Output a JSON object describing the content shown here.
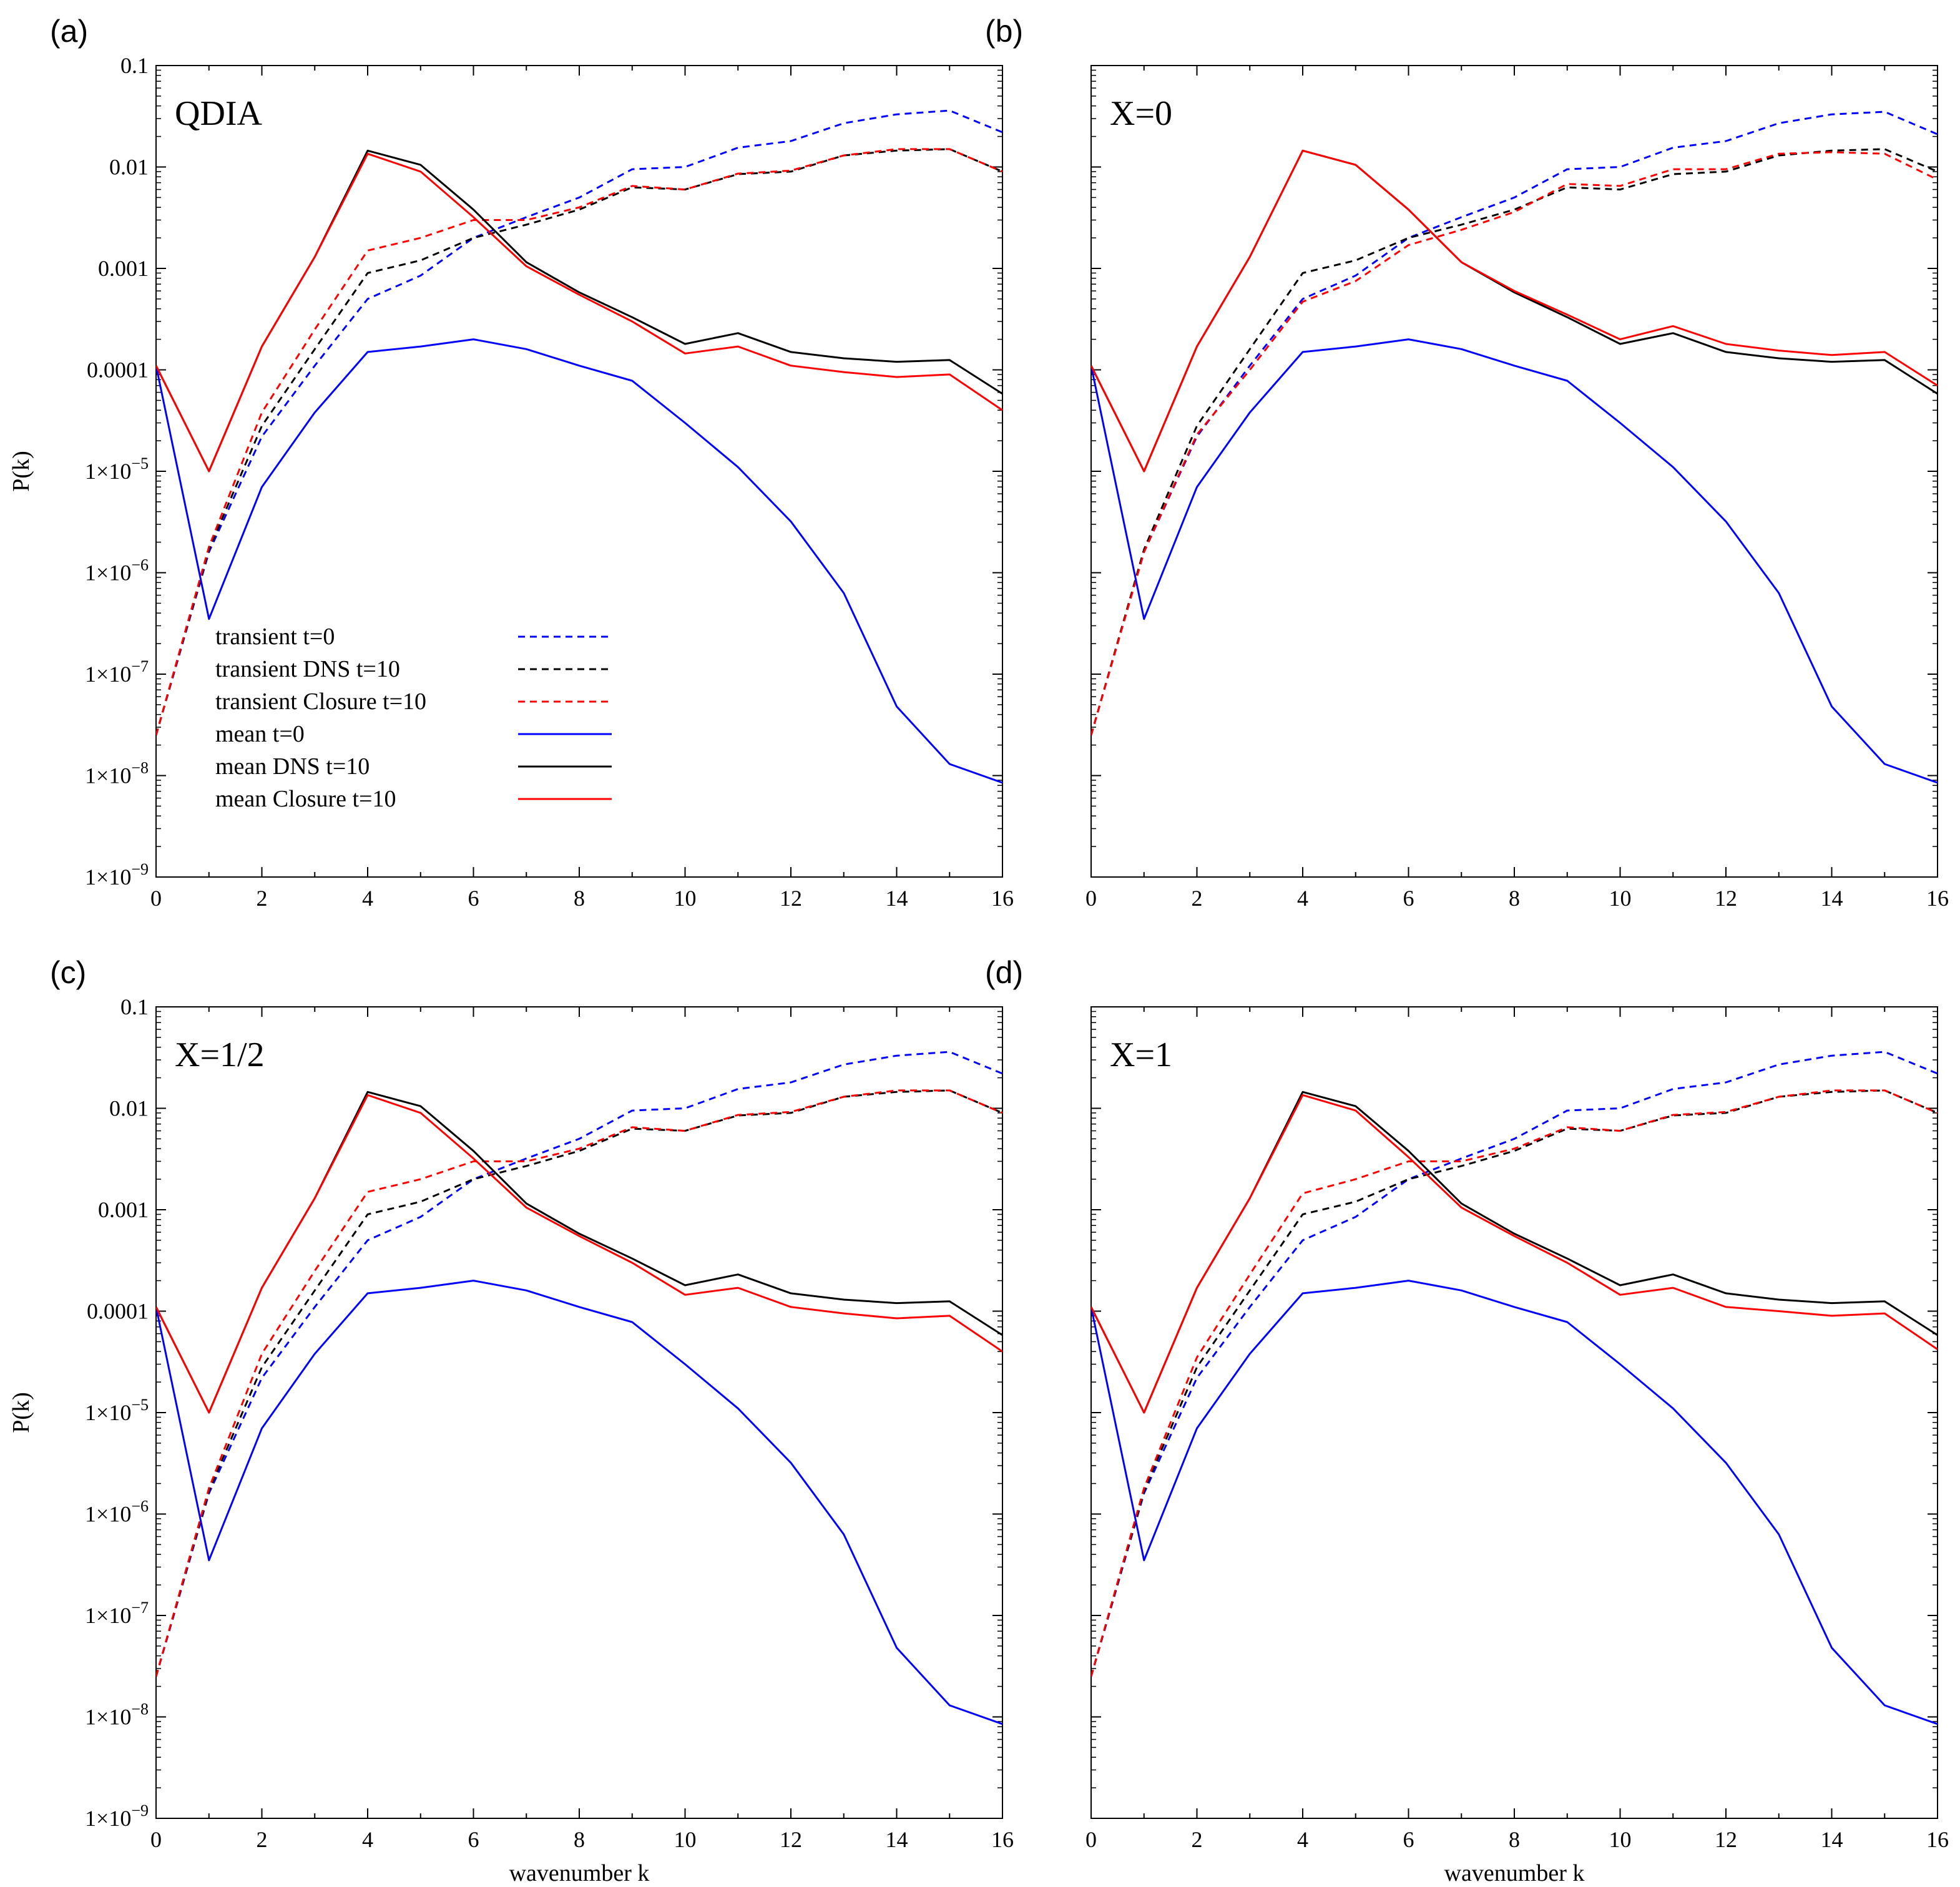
{
  "chart_data": {
    "type": "line",
    "x": [
      0,
      1,
      2,
      3,
      4,
      5,
      6,
      7,
      8,
      9,
      10,
      11,
      12,
      13,
      14,
      15,
      16
    ],
    "xlabel": "wavenumber k",
    "ylabel": "P(k)",
    "xlim": [
      0,
      16
    ],
    "ylim": [
      1e-09,
      0.1
    ],
    "yscale": "log",
    "xticks": [
      0,
      2,
      4,
      6,
      8,
      10,
      12,
      14,
      16
    ],
    "yticks": [
      {
        "value": 0.1,
        "mantissa": "0.1",
        "exp": ""
      },
      {
        "value": 0.01,
        "mantissa": "0.01",
        "exp": ""
      },
      {
        "value": 0.001,
        "mantissa": "0.001",
        "exp": ""
      },
      {
        "value": 0.0001,
        "mantissa": "0.0001",
        "exp": ""
      },
      {
        "value": 1e-05,
        "mantissa": "1×10",
        "exp": "−5"
      },
      {
        "value": 1e-06,
        "mantissa": "1×10",
        "exp": "−6"
      },
      {
        "value": 1e-07,
        "mantissa": "1×10",
        "exp": "−7"
      },
      {
        "value": 1e-08,
        "mantissa": "1×10",
        "exp": "−8"
      },
      {
        "value": 1e-09,
        "mantissa": "1×10",
        "exp": "−9"
      }
    ],
    "legend": [
      {
        "label": "transient t=0",
        "series": 0
      },
      {
        "label": "transient DNS t=10",
        "series": 1
      },
      {
        "label": "transient Closure t=10",
        "series": 2
      },
      {
        "label": "mean t=0",
        "series": 3
      },
      {
        "label": "mean DNS t=10",
        "series": 4
      },
      {
        "label": "mean Closure t=10",
        "series": 5
      }
    ],
    "legend_panel": "a",
    "panels": [
      {
        "letter": "(a)",
        "title": "QDIA",
        "series": [
          {
            "name": "transient t=0",
            "color": "#0000ff",
            "dash": true,
            "values": [
              2.5e-08,
              1.6e-06,
              2.2e-05,
              0.00011,
              0.0005,
              0.00085,
              0.002,
              0.0032,
              0.005,
              0.0095,
              0.01,
              0.0155,
              0.018,
              0.027,
              0.033,
              0.036,
              0.022
            ]
          },
          {
            "name": "transient DNS t=10",
            "color": "#000000",
            "dash": true,
            "values": [
              2.5e-08,
              1.7e-06,
              2.8e-05,
              0.00016,
              0.0009,
              0.0012,
              0.002,
              0.0027,
              0.0038,
              0.0063,
              0.006,
              0.0085,
              0.009,
              0.013,
              0.0145,
              0.015,
              0.009
            ]
          },
          {
            "name": "transient Closure t=10",
            "color": "#ff0000",
            "dash": true,
            "values": [
              2.5e-08,
              1.8e-06,
              3.8e-05,
              0.00025,
              0.0015,
              0.002,
              0.003,
              0.003,
              0.004,
              0.0065,
              0.006,
              0.0086,
              0.0092,
              0.013,
              0.015,
              0.015,
              0.009
            ]
          },
          {
            "name": "mean t=0",
            "color": "#0000ff",
            "dash": false,
            "values": [
              0.00011,
              3.5e-07,
              7e-06,
              3.8e-05,
              0.00015,
              0.00017,
              0.0002,
              0.00016,
              0.00011,
              7.8e-05,
              3e-05,
              1.1e-05,
              3.2e-06,
              6.3e-07,
              4.8e-08,
              1.3e-08,
              8.5e-09
            ]
          },
          {
            "name": "mean DNS t=10",
            "color": "#000000",
            "dash": false,
            "values": [
              0.00011,
              1e-05,
              0.00017,
              0.0013,
              0.0145,
              0.0105,
              0.0038,
              0.00115,
              0.00058,
              0.00033,
              0.00018,
              0.00023,
              0.00015,
              0.00013,
              0.00012,
              0.000125,
              5.8e-05
            ]
          },
          {
            "name": "mean Closure t=10",
            "color": "#ff0000",
            "dash": false,
            "values": [
              0.00011,
              1e-05,
              0.00017,
              0.0013,
              0.0135,
              0.009,
              0.0032,
              0.00105,
              0.00055,
              0.0003,
              0.000145,
              0.00017,
              0.00011,
              9.5e-05,
              8.5e-05,
              9e-05,
              4e-05
            ]
          }
        ]
      },
      {
        "letter": "(b)",
        "title": "X=0",
        "series": [
          {
            "name": "transient t=0",
            "color": "#0000ff",
            "dash": true,
            "values": [
              2.5e-08,
              1.6e-06,
              2.2e-05,
              0.00011,
              0.0005,
              0.00085,
              0.002,
              0.0032,
              0.005,
              0.0095,
              0.01,
              0.0155,
              0.018,
              0.027,
              0.033,
              0.035,
              0.021
            ]
          },
          {
            "name": "transient DNS t=10",
            "color": "#000000",
            "dash": true,
            "values": [
              2.5e-08,
              1.7e-06,
              2.8e-05,
              0.00016,
              0.0009,
              0.0012,
              0.002,
              0.0027,
              0.0038,
              0.0063,
              0.006,
              0.0085,
              0.009,
              0.013,
              0.0145,
              0.015,
              0.009
            ]
          },
          {
            "name": "transient Closure t=10",
            "color": "#ff0000",
            "dash": true,
            "values": [
              2.5e-08,
              1.6e-06,
              2.3e-05,
              0.0001,
              0.00047,
              0.00075,
              0.0017,
              0.0024,
              0.0036,
              0.0068,
              0.0065,
              0.0095,
              0.0095,
              0.0135,
              0.014,
              0.0135,
              0.0075
            ]
          },
          {
            "name": "mean t=0",
            "color": "#0000ff",
            "dash": false,
            "values": [
              0.00011,
              3.5e-07,
              7e-06,
              3.8e-05,
              0.00015,
              0.00017,
              0.0002,
              0.00016,
              0.00011,
              7.8e-05,
              3e-05,
              1.1e-05,
              3.2e-06,
              6.3e-07,
              4.8e-08,
              1.3e-08,
              8.5e-09
            ]
          },
          {
            "name": "mean DNS t=10",
            "color": "#000000",
            "dash": false,
            "values": [
              0.00011,
              1e-05,
              0.00017,
              0.0013,
              0.0145,
              0.0105,
              0.0038,
              0.00115,
              0.00058,
              0.00033,
              0.00018,
              0.00023,
              0.00015,
              0.00013,
              0.00012,
              0.000125,
              5.8e-05
            ]
          },
          {
            "name": "mean Closure t=10",
            "color": "#ff0000",
            "dash": false,
            "values": [
              0.00011,
              1e-05,
              0.00017,
              0.0013,
              0.0145,
              0.0105,
              0.0038,
              0.00115,
              0.0006,
              0.00035,
              0.0002,
              0.00027,
              0.00018,
              0.000155,
              0.00014,
              0.00015,
              7e-05
            ]
          }
        ]
      },
      {
        "letter": "(c)",
        "title": "X=1/2",
        "series": [
          {
            "name": "transient t=0",
            "color": "#0000ff",
            "dash": true,
            "values": [
              2.5e-08,
              1.6e-06,
              2.2e-05,
              0.00011,
              0.0005,
              0.00085,
              0.002,
              0.0032,
              0.005,
              0.0095,
              0.01,
              0.0155,
              0.018,
              0.027,
              0.033,
              0.036,
              0.022
            ]
          },
          {
            "name": "transient DNS t=10",
            "color": "#000000",
            "dash": true,
            "values": [
              2.5e-08,
              1.7e-06,
              2.8e-05,
              0.00016,
              0.0009,
              0.0012,
              0.002,
              0.0027,
              0.0038,
              0.0063,
              0.006,
              0.0085,
              0.009,
              0.013,
              0.0145,
              0.015,
              0.009
            ]
          },
          {
            "name": "transient Closure t=10",
            "color": "#ff0000",
            "dash": true,
            "values": [
              2.5e-08,
              1.8e-06,
              3.8e-05,
              0.00025,
              0.0015,
              0.002,
              0.003,
              0.003,
              0.004,
              0.0065,
              0.006,
              0.0086,
              0.0092,
              0.013,
              0.015,
              0.015,
              0.009
            ]
          },
          {
            "name": "mean t=0",
            "color": "#0000ff",
            "dash": false,
            "values": [
              0.00011,
              3.5e-07,
              7e-06,
              3.8e-05,
              0.00015,
              0.00017,
              0.0002,
              0.00016,
              0.00011,
              7.8e-05,
              3e-05,
              1.1e-05,
              3.2e-06,
              6.3e-07,
              4.8e-08,
              1.3e-08,
              8.5e-09
            ]
          },
          {
            "name": "mean DNS t=10",
            "color": "#000000",
            "dash": false,
            "values": [
              0.00011,
              1e-05,
              0.00017,
              0.0013,
              0.0145,
              0.0105,
              0.0038,
              0.00115,
              0.00058,
              0.00033,
              0.00018,
              0.00023,
              0.00015,
              0.00013,
              0.00012,
              0.000125,
              5.8e-05
            ]
          },
          {
            "name": "mean Closure t=10",
            "color": "#ff0000",
            "dash": false,
            "values": [
              0.00011,
              1e-05,
              0.00017,
              0.0013,
              0.0135,
              0.009,
              0.0032,
              0.00105,
              0.00055,
              0.0003,
              0.000145,
              0.00017,
              0.00011,
              9.5e-05,
              8.5e-05,
              9e-05,
              4e-05
            ]
          }
        ]
      },
      {
        "letter": "(d)",
        "title": "X=1",
        "series": [
          {
            "name": "transient t=0",
            "color": "#0000ff",
            "dash": true,
            "values": [
              2.5e-08,
              1.6e-06,
              2.2e-05,
              0.00011,
              0.0005,
              0.00085,
              0.002,
              0.0032,
              0.005,
              0.0095,
              0.01,
              0.0155,
              0.018,
              0.027,
              0.033,
              0.036,
              0.022
            ]
          },
          {
            "name": "transient DNS t=10",
            "color": "#000000",
            "dash": true,
            "values": [
              2.5e-08,
              1.7e-06,
              2.8e-05,
              0.00016,
              0.0009,
              0.0012,
              0.002,
              0.0027,
              0.0038,
              0.0063,
              0.006,
              0.0085,
              0.009,
              0.013,
              0.0145,
              0.015,
              0.009
            ]
          },
          {
            "name": "transient Closure t=10",
            "color": "#ff0000",
            "dash": true,
            "values": [
              2.5e-08,
              1.8e-06,
              3.5e-05,
              0.00023,
              0.00145,
              0.002,
              0.003,
              0.003,
              0.004,
              0.0065,
              0.006,
              0.0086,
              0.0092,
              0.013,
              0.015,
              0.015,
              0.009
            ]
          },
          {
            "name": "mean t=0",
            "color": "#0000ff",
            "dash": false,
            "values": [
              0.00011,
              3.5e-07,
              7e-06,
              3.8e-05,
              0.00015,
              0.00017,
              0.0002,
              0.00016,
              0.00011,
              7.8e-05,
              3e-05,
              1.1e-05,
              3.2e-06,
              6.3e-07,
              4.8e-08,
              1.3e-08,
              8.5e-09
            ]
          },
          {
            "name": "mean DNS t=10",
            "color": "#000000",
            "dash": false,
            "values": [
              0.00011,
              1e-05,
              0.00017,
              0.0013,
              0.0145,
              0.0105,
              0.0038,
              0.00115,
              0.00058,
              0.00033,
              0.00018,
              0.00023,
              0.00015,
              0.00013,
              0.00012,
              0.000125,
              5.8e-05
            ]
          },
          {
            "name": "mean Closure t=10",
            "color": "#ff0000",
            "dash": false,
            "values": [
              0.00011,
              1e-05,
              0.00017,
              0.0013,
              0.0135,
              0.0095,
              0.0033,
              0.00105,
              0.00055,
              0.0003,
              0.000145,
              0.00017,
              0.00011,
              0.0001,
              9e-05,
              9.5e-05,
              4.2e-05
            ]
          }
        ]
      }
    ]
  }
}
